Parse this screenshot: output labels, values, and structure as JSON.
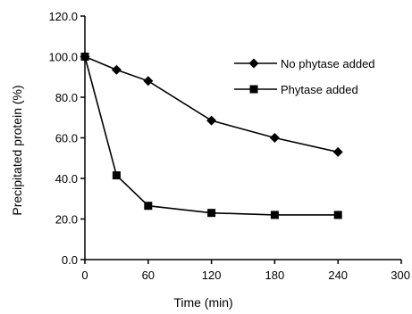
{
  "chart_data": {
    "type": "line",
    "title": "",
    "xlabel": "Time (min)",
    "ylabel": "Precipitated protein (%)",
    "xlim": [
      0,
      300
    ],
    "ylim": [
      0,
      120
    ],
    "x_ticks": [
      0,
      60,
      120,
      180,
      240,
      300
    ],
    "x_tick_labels": [
      "0",
      "60",
      "120",
      "180",
      "240",
      "300"
    ],
    "y_ticks": [
      0,
      20,
      40,
      60,
      80,
      100,
      120
    ],
    "y_tick_labels": [
      "0.0",
      "20.0",
      "40.0",
      "60.0",
      "80.0",
      "100.0",
      "120.0"
    ],
    "grid": false,
    "legend_position": "top-right",
    "series": [
      {
        "name": "No phytase added",
        "marker": "diamond",
        "color": "#000000",
        "x": [
          0,
          30,
          60,
          120,
          180,
          240
        ],
        "y": [
          100,
          93.5,
          88,
          68.5,
          60,
          53
        ]
      },
      {
        "name": "Phytase added",
        "marker": "square",
        "color": "#000000",
        "x": [
          0,
          30,
          60,
          120,
          180,
          240
        ],
        "y": [
          100,
          41.5,
          26.5,
          23,
          22,
          22
        ]
      }
    ]
  }
}
